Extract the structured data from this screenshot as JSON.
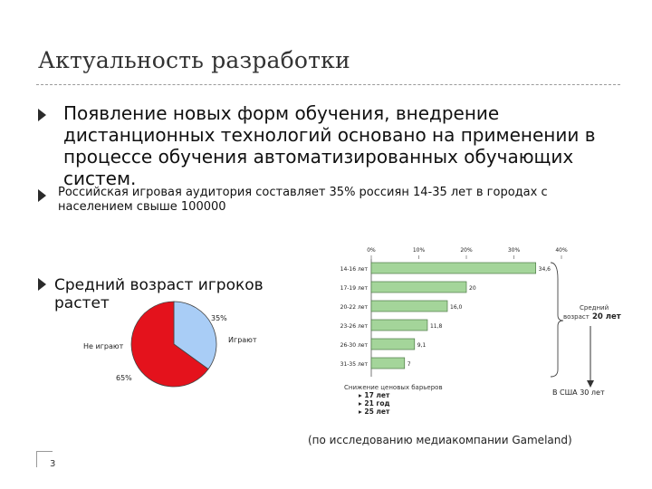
{
  "slide": {
    "title": "Актуальность разработки",
    "bullets": [
      "Появление новых форм обучения, внедрение дистанционных технологий основано на применении  в процессе обучения автоматизированных обучающих систем.",
      "Российская игровая аудитория составляет 35% россиян 14-35 лет в городах с населением свыше 100000",
      "Средний возраст игроков растет"
    ],
    "source": "(по исследованию медиакомпании Gameland)",
    "page_number": "3"
  },
  "colors": {
    "pie_play": "#a9cdf6",
    "pie_noplay": "#e4121c",
    "bar_green": "#a4d59a",
    "bar_border": "#4f7a48"
  },
  "chart_data": [
    {
      "type": "pie",
      "series": [
        {
          "label": "Играют",
          "value": 35,
          "value_label": "35%"
        },
        {
          "label": "Не играют",
          "value": 65,
          "value_label": "65%"
        }
      ]
    },
    {
      "type": "bar",
      "orientation": "horizontal",
      "categories": [
        "14-16 лет",
        "17-19 лет",
        "20-22 лет",
        "23-26 лет",
        "26-30 лет",
        "31-35 лет"
      ],
      "values": [
        34.6,
        20,
        16.0,
        11.8,
        9.1,
        7
      ],
      "value_labels": [
        "34,6",
        "20",
        "16,0",
        "11,8",
        "9,1",
        "7"
      ],
      "xticks": [
        "0%",
        "10%",
        "20%",
        "30%",
        "40%"
      ],
      "xlim": [
        0,
        40
      ],
      "annotation_right": {
        "line1": "Средний",
        "line2": "возраст",
        "value": "20 лет"
      },
      "annotation_bottom": {
        "title": "Снижение ценовых барьеров",
        "items": [
          "17 лет",
          "21 год",
          "25 лет"
        ],
        "result": "В США 30 лет"
      }
    }
  ]
}
